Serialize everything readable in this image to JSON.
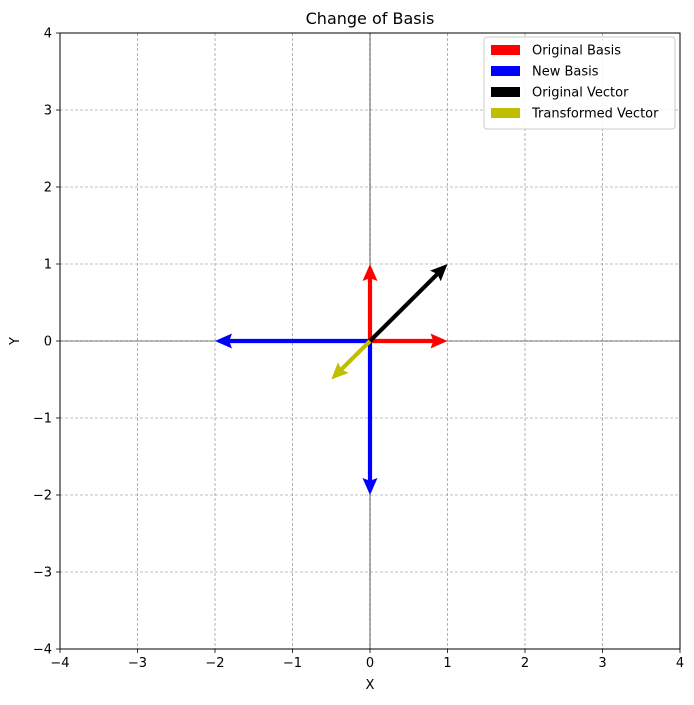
{
  "chart_data": {
    "type": "quiver",
    "title": "Change of Basis",
    "xlabel": "X",
    "ylabel": "Y",
    "xlim": [
      -4,
      4
    ],
    "ylim": [
      -4,
      4
    ],
    "xticks": [
      -4,
      -3,
      -2,
      -1,
      0,
      1,
      2,
      3,
      4
    ],
    "yticks": [
      -4,
      -3,
      -2,
      -1,
      0,
      1,
      2,
      3,
      4
    ],
    "grid": true,
    "legend_position": "top-right",
    "series": [
      {
        "name": "Original Basis",
        "color": "#ff0000",
        "vectors": [
          {
            "x0": 0,
            "y0": 0,
            "dx": 1,
            "dy": 0
          },
          {
            "x0": 0,
            "y0": 0,
            "dx": 0,
            "dy": 1
          }
        ]
      },
      {
        "name": "New Basis",
        "color": "#0000ff",
        "vectors": [
          {
            "x0": 0,
            "y0": 0,
            "dx": -2,
            "dy": 0
          },
          {
            "x0": 0,
            "y0": 0,
            "dx": 0,
            "dy": -2
          }
        ]
      },
      {
        "name": "Original Vector",
        "color": "#000000",
        "vectors": [
          {
            "x0": 0,
            "y0": 0,
            "dx": 1,
            "dy": 1
          }
        ]
      },
      {
        "name": "Transformed Vector",
        "color": "#bfbf00",
        "vectors": [
          {
            "x0": 0,
            "y0": 0,
            "dx": -0.5,
            "dy": -0.5
          }
        ]
      }
    ]
  }
}
